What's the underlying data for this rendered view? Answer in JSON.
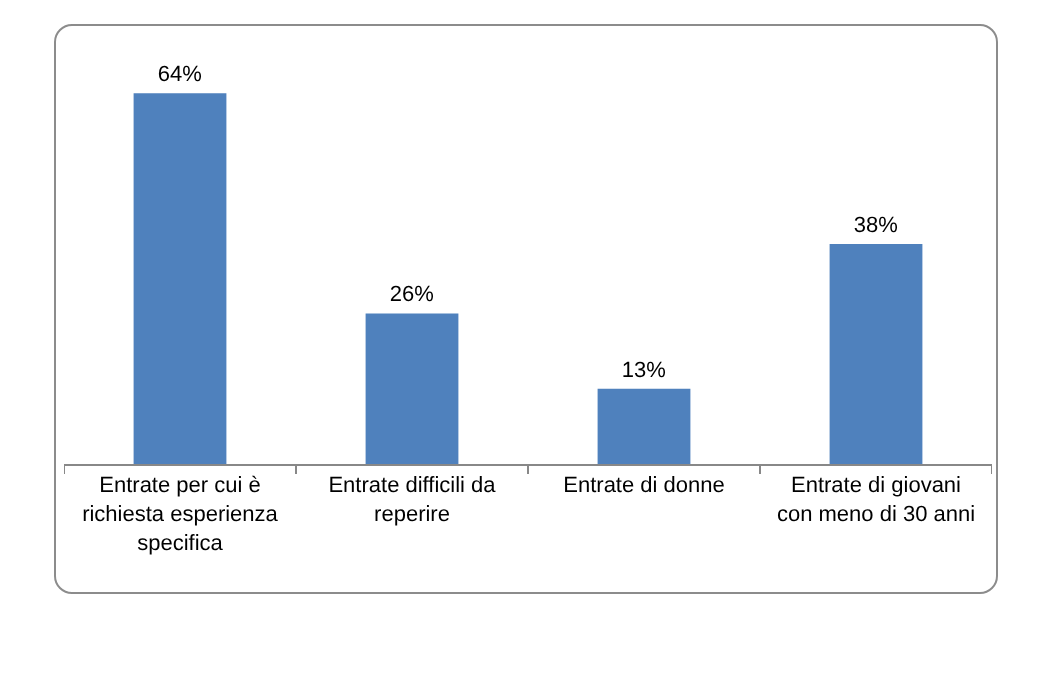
{
  "chart_data": {
    "type": "bar",
    "categories": [
      "Entrate per cui è richiesta esperienza specifica",
      "Entrate difficili da reperire",
      "Entrate di donne",
      "Entrate di giovani con meno di 30 anni"
    ],
    "values": [
      64,
      26,
      13,
      38
    ],
    "value_labels": [
      "64%",
      "26%",
      "13%",
      "38%"
    ],
    "color": "#4f81bd"
  }
}
